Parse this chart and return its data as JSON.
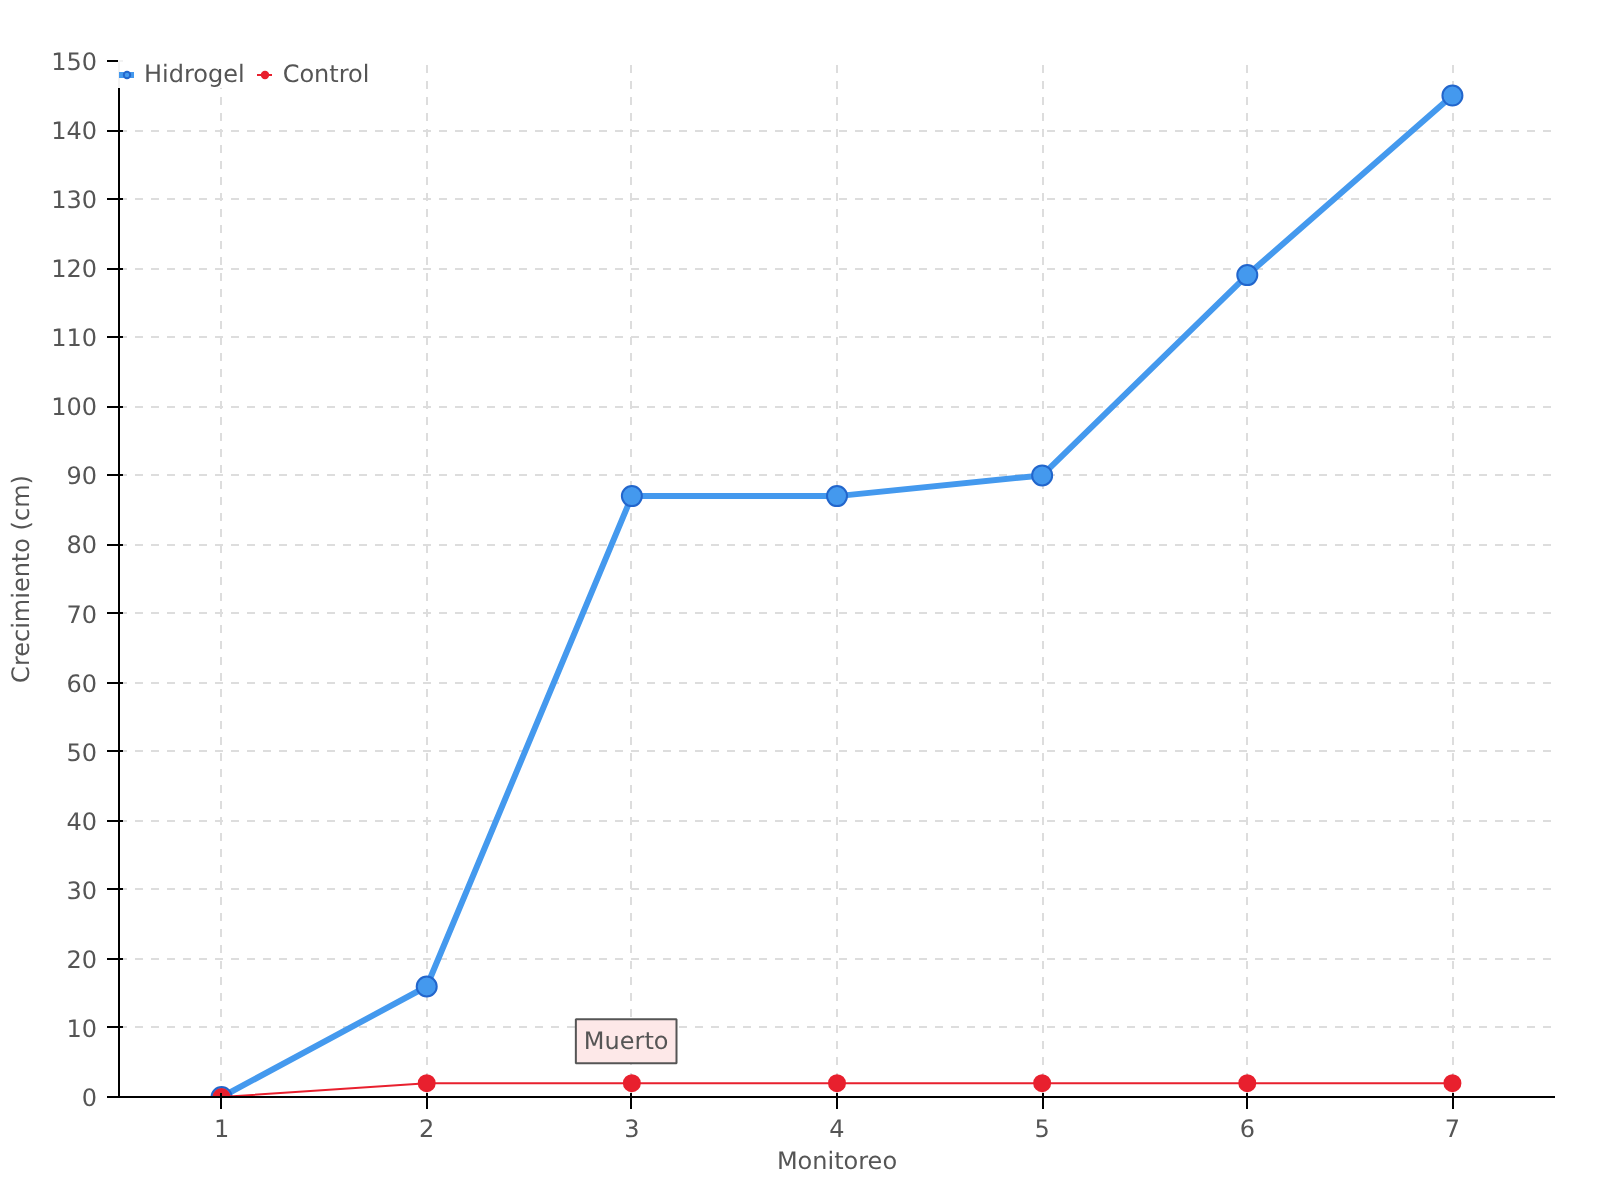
{
  "chart_data": {
    "type": "line",
    "xlabel": "Monitoreo",
    "ylabel": "Crecimiento (cm)",
    "x": [
      1,
      2,
      3,
      4,
      5,
      6,
      7
    ],
    "series": [
      {
        "name": "Hidrogel",
        "color": "#4499ee",
        "values": [
          0,
          16,
          87,
          87,
          90,
          119,
          145
        ]
      },
      {
        "name": "Control",
        "color": "#e8202e",
        "values": [
          0,
          2,
          2,
          2,
          2,
          2,
          2
        ]
      }
    ],
    "xlim": [
      0.5,
      7.5
    ],
    "xticks": [
      1,
      2,
      3,
      4,
      5,
      6,
      7
    ],
    "ylim": [
      0,
      150
    ],
    "yticks": [
      0,
      10,
      20,
      30,
      40,
      50,
      60,
      70,
      80,
      90,
      100,
      110,
      120,
      130,
      140,
      150
    ],
    "annotations": [
      {
        "text": "Muerto",
        "x": 3,
        "y": 2
      }
    ],
    "grid": true,
    "legend": "top left",
    "marker": "circle",
    "line_style": "solid"
  }
}
